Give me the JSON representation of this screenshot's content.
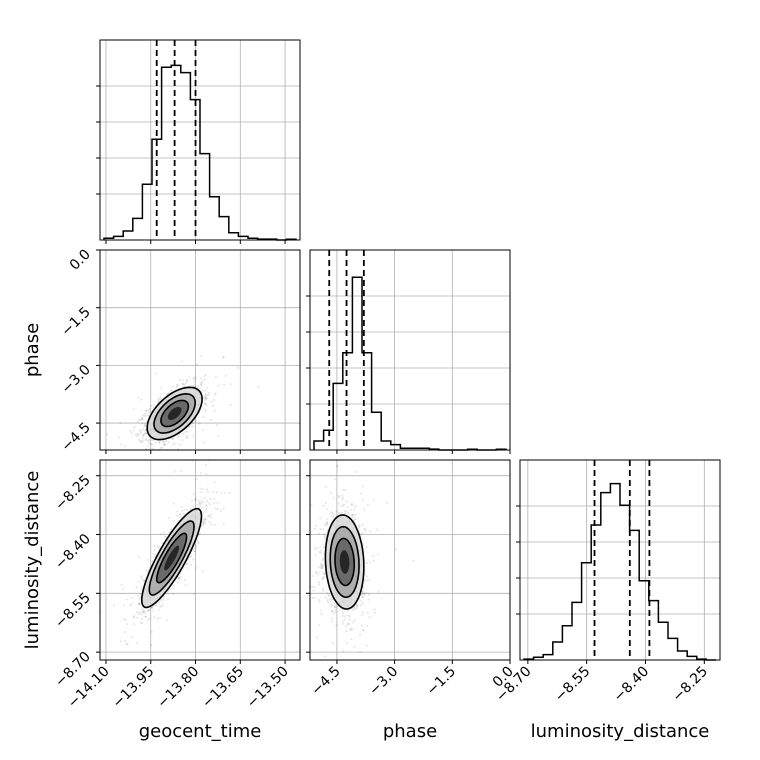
{
  "chart_data": {
    "type": "corner",
    "parameters": [
      {
        "name": "geocent_time",
        "label": "geocent_time",
        "range": [
          -14.12,
          -13.45
        ],
        "ticks": [
          -14.1,
          -13.95,
          -13.8,
          -13.65,
          -13.5
        ],
        "tick_labels": [
          "−14.10",
          "−13.95",
          "−13.80",
          "−13.65",
          "−13.50"
        ],
        "quantiles": [
          -13.93,
          -13.87,
          -13.8
        ],
        "histogram": [
          0.01,
          0.02,
          0.05,
          0.12,
          0.31,
          0.56,
          0.96,
          0.97,
          0.93,
          0.78,
          0.48,
          0.24,
          0.13,
          0.04,
          0.02,
          0.01,
          0.005,
          0.005,
          0,
          0.004
        ]
      },
      {
        "name": "phase",
        "label": "phase",
        "range": [
          -5.2,
          0.0
        ],
        "ticks": [
          -4.5,
          -3.0,
          -1.5,
          0.0
        ],
        "tick_labels": [
          "−4.5",
          "−3.0",
          "−1.5",
          "0.0"
        ],
        "quantiles": [
          -4.7,
          -4.25,
          -3.8
        ],
        "histogram": [
          0.05,
          0.11,
          0.37,
          0.54,
          0.96,
          0.54,
          0.21,
          0.05,
          0.03,
          0.01,
          0.01,
          0.01,
          0.005,
          0,
          0,
          0,
          0.004,
          0,
          0,
          0.004
        ]
      },
      {
        "name": "luminosity_distance",
        "label": "luminosity_distance",
        "range": [
          -8.72,
          -8.21
        ],
        "ticks": [
          -8.7,
          -8.55,
          -8.4,
          -8.25
        ],
        "tick_labels": [
          "−8.70",
          "−8.55",
          "−8.40",
          "−8.25"
        ],
        "quantiles": [
          -8.53,
          -8.44,
          -8.39
        ],
        "histogram": [
          0.005,
          0.015,
          0.03,
          0.1,
          0.19,
          0.32,
          0.54,
          0.75,
          0.93,
          0.98,
          0.86,
          0.72,
          0.44,
          0.33,
          0.21,
          0.12,
          0.05,
          0.02,
          0.005,
          0
        ]
      }
    ],
    "pairs": [
      {
        "x": "geocent_time",
        "y": "phase",
        "center": [
          -13.87,
          -4.25
        ],
        "sd": [
          0.046,
          0.34
        ],
        "rho": 0.55
      },
      {
        "x": "geocent_time",
        "y": "luminosity_distance",
        "center": [
          -13.88,
          -8.46
        ],
        "sd": [
          0.05,
          0.063
        ],
        "rho": 0.85
      },
      {
        "x": "phase",
        "y": "luminosity_distance",
        "center": [
          -4.3,
          -8.47
        ],
        "sd": [
          0.25,
          0.06
        ],
        "rho": -0.1
      }
    ],
    "contour_levels_sigma": [
      0.5,
      1.0,
      1.5,
      2.0
    ],
    "grid": true
  }
}
